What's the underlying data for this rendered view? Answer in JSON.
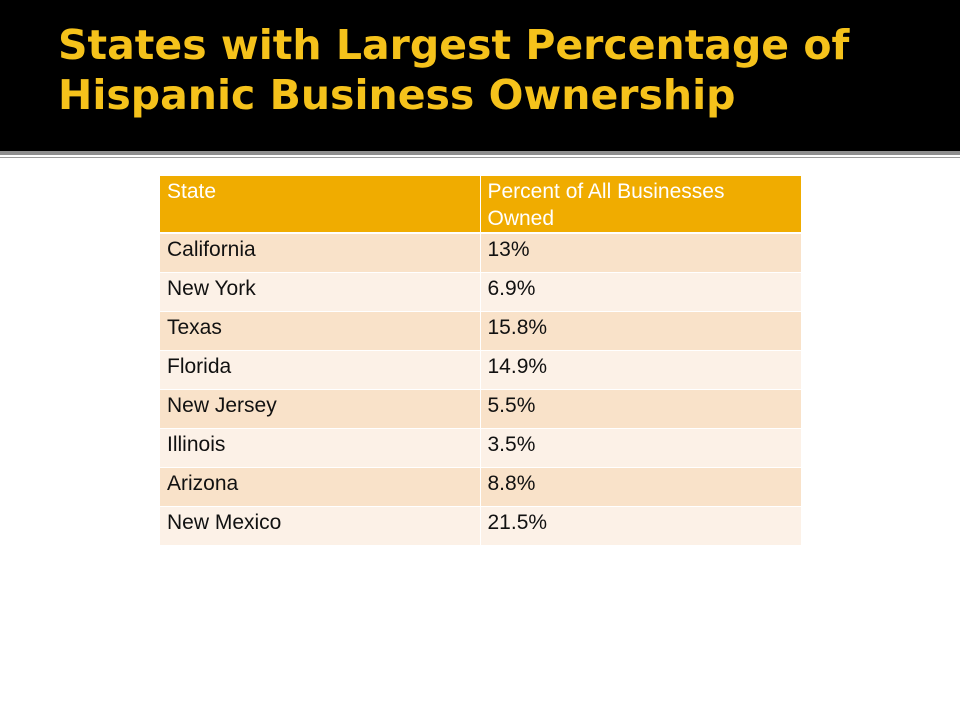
{
  "slide": {
    "title_line1": "States with Largest  Percentage of",
    "title_line2": "Hispanic Business Ownership"
  },
  "table": {
    "headers": [
      "State",
      "Percent of All Businesses Owned"
    ],
    "rows": [
      {
        "state": "California",
        "percent": "13%"
      },
      {
        "state": "New York",
        "percent": "6.9%"
      },
      {
        "state": "Texas",
        "percent": "15.8%"
      },
      {
        "state": "Florida",
        "percent": "14.9%"
      },
      {
        "state": "New Jersey",
        "percent": "5.5%"
      },
      {
        "state": "Illinois",
        "percent": "3.5%"
      },
      {
        "state": "Arizona",
        "percent": "8.8%"
      },
      {
        "state": "New Mexico",
        "percent": "21.5%"
      }
    ]
  },
  "colors": {
    "title_background": "#000000",
    "title_text": "#f5c21b",
    "header_fill": "#f0ac00",
    "row_fill_odd": "#f9e2c9",
    "row_fill_even": "#fcf1e7"
  }
}
